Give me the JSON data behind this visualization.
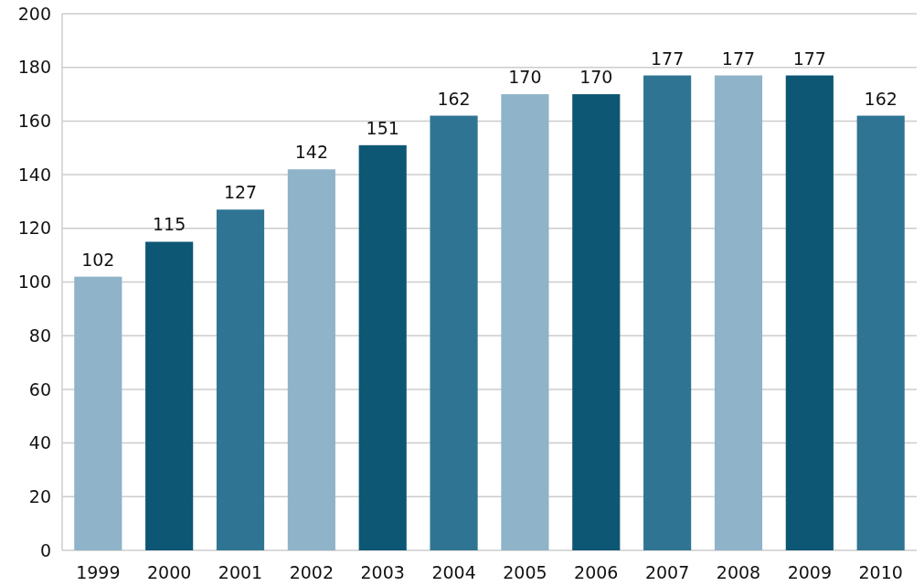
{
  "chart_data": {
    "type": "bar",
    "categories": [
      "1999",
      "2000",
      "2001",
      "2002",
      "2003",
      "2004",
      "2005",
      "2006",
      "2007",
      "2008",
      "2009",
      "2010"
    ],
    "values": [
      102,
      115,
      127,
      142,
      151,
      162,
      170,
      170,
      177,
      177,
      177,
      162
    ],
    "colors": [
      "#8fb3c8",
      "#0d5775",
      "#2f7593",
      "#8fb3c8",
      "#0d5775",
      "#2f7593",
      "#8fb3c8",
      "#0d5775",
      "#2f7593",
      "#8fb3c8",
      "#0d5775",
      "#2f7593"
    ],
    "ylim": [
      0,
      200
    ],
    "yticks": [
      0,
      20,
      40,
      60,
      80,
      100,
      120,
      140,
      160,
      180,
      200
    ],
    "grid": "y",
    "data_labels": true
  }
}
